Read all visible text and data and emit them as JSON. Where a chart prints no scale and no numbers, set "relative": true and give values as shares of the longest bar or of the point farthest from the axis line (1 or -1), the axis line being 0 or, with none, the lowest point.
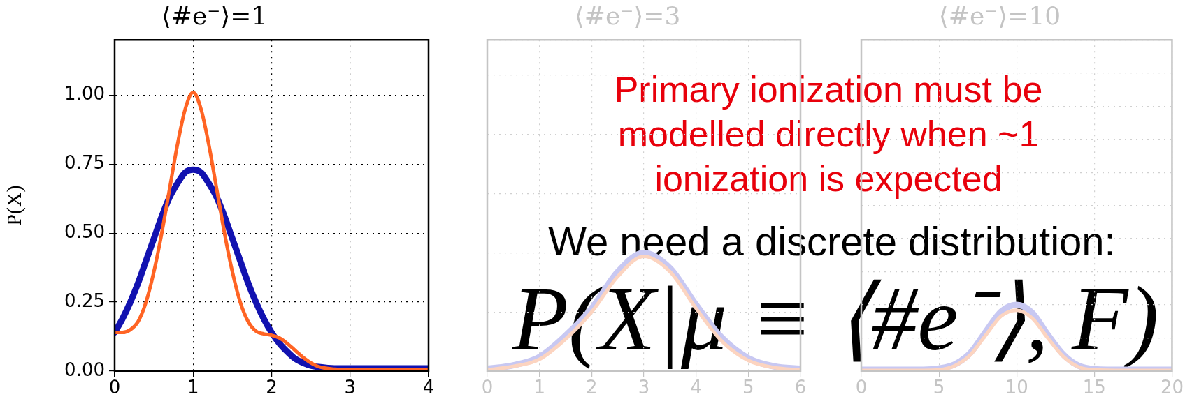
{
  "chart_data": [
    {
      "type": "line",
      "title": "⟨#e⁻⟩=1",
      "ylabel": "P(X)",
      "xlim": [
        0,
        4
      ],
      "xticks": [
        0,
        1,
        2,
        3,
        4
      ],
      "ylim": [
        0,
        1.2
      ],
      "yticks": [
        {
          "value": 0,
          "label": "0.00"
        },
        {
          "value": 0.25,
          "label": "0.25"
        },
        {
          "value": 0.5,
          "label": "0.50"
        },
        {
          "value": 0.75,
          "label": "0.75"
        },
        {
          "value": 1,
          "label": "1.00"
        }
      ],
      "grid": true,
      "marker": "none",
      "line_style": "solid",
      "x": [
        0,
        0.1,
        0.2,
        0.3,
        0.4,
        0.5,
        0.6,
        0.7,
        0.8,
        0.9,
        1.0,
        1.1,
        1.2,
        1.3,
        1.4,
        1.5,
        1.6,
        1.7,
        1.8,
        1.9,
        2.0,
        2.1,
        2.2,
        2.3,
        2.4,
        2.5,
        2.6,
        2.8,
        3,
        3.5,
        4
      ],
      "series": [
        {
          "color": "#1212b0",
          "values": [
            0.14,
            0.19,
            0.25,
            0.32,
            0.4,
            0.48,
            0.56,
            0.63,
            0.68,
            0.72,
            0.73,
            0.72,
            0.68,
            0.63,
            0.56,
            0.48,
            0.4,
            0.32,
            0.25,
            0.19,
            0.14,
            0.1,
            0.07,
            0.045,
            0.03,
            0.02,
            0.015,
            0.01,
            0.01,
            0.01,
            0.01
          ]
        },
        {
          "color": "#ff6424",
          "values": [
            0.14,
            0.14,
            0.15,
            0.18,
            0.25,
            0.36,
            0.5,
            0.66,
            0.82,
            0.95,
            1.01,
            0.95,
            0.82,
            0.66,
            0.5,
            0.36,
            0.25,
            0.18,
            0.145,
            0.135,
            0.13,
            0.12,
            0.1,
            0.075,
            0.05,
            0.03,
            0.016,
            0.007,
            0.005,
            0.005,
            0.005
          ]
        }
      ]
    },
    {
      "type": "line",
      "title": "⟨#e⁻⟩=3",
      "relative": true,
      "tick_labels": "x",
      "xlim": [
        0,
        6
      ],
      "xticks": [
        0,
        1,
        2,
        3,
        4,
        5,
        6
      ],
      "grid": true,
      "marker": "none",
      "line_style": "solid",
      "x": [
        0,
        0.5,
        1,
        1.5,
        2,
        2.5,
        3,
        3.5,
        4,
        4.5,
        5,
        5.5,
        6
      ],
      "series": [
        {
          "color": "#c8c8f2",
          "values": [
            0.02,
            0.05,
            0.12,
            0.3,
            0.53,
            0.84,
            1,
            0.87,
            0.56,
            0.28,
            0.11,
            0.04,
            0.02
          ]
        },
        {
          "color": "#fcd4c0",
          "values": [
            0.01,
            0.04,
            0.1,
            0.27,
            0.5,
            0.8,
            0.97,
            0.84,
            0.53,
            0.25,
            0.09,
            0.03,
            0.01
          ]
        }
      ]
    },
    {
      "type": "line",
      "title": "⟨#e⁻⟩=10",
      "relative": true,
      "tick_labels": "x",
      "xlim": [
        0,
        20
      ],
      "xticks": [
        0,
        5,
        10,
        15,
        20
      ],
      "grid": true,
      "marker": "none",
      "line_style": "solid",
      "x": [
        0,
        2,
        4,
        5,
        6,
        7,
        8,
        9,
        10,
        11,
        12,
        13,
        14,
        15,
        17,
        20
      ],
      "series": [
        {
          "color": "#c8c8f2",
          "values": [
            0.02,
            0.02,
            0.02,
            0.04,
            0.1,
            0.27,
            0.59,
            0.9,
            1,
            0.88,
            0.55,
            0.25,
            0.08,
            0.03,
            0.02,
            0.02
          ]
        },
        {
          "color": "#fcd4c0",
          "values": [
            0.01,
            0.01,
            0.01,
            0.02,
            0.08,
            0.24,
            0.54,
            0.83,
            0.92,
            0.8,
            0.5,
            0.22,
            0.06,
            0.02,
            0.01,
            0.01
          ]
        }
      ]
    },
    {
      "type": "other",
      "annotations": [
        "Primary ionization must be modelled directly when ~1 ionization is expected",
        "We need a discrete distribution:",
        "P(X|μ ≡ ⟨#e⁻⟩, F)"
      ]
    }
  ]
}
